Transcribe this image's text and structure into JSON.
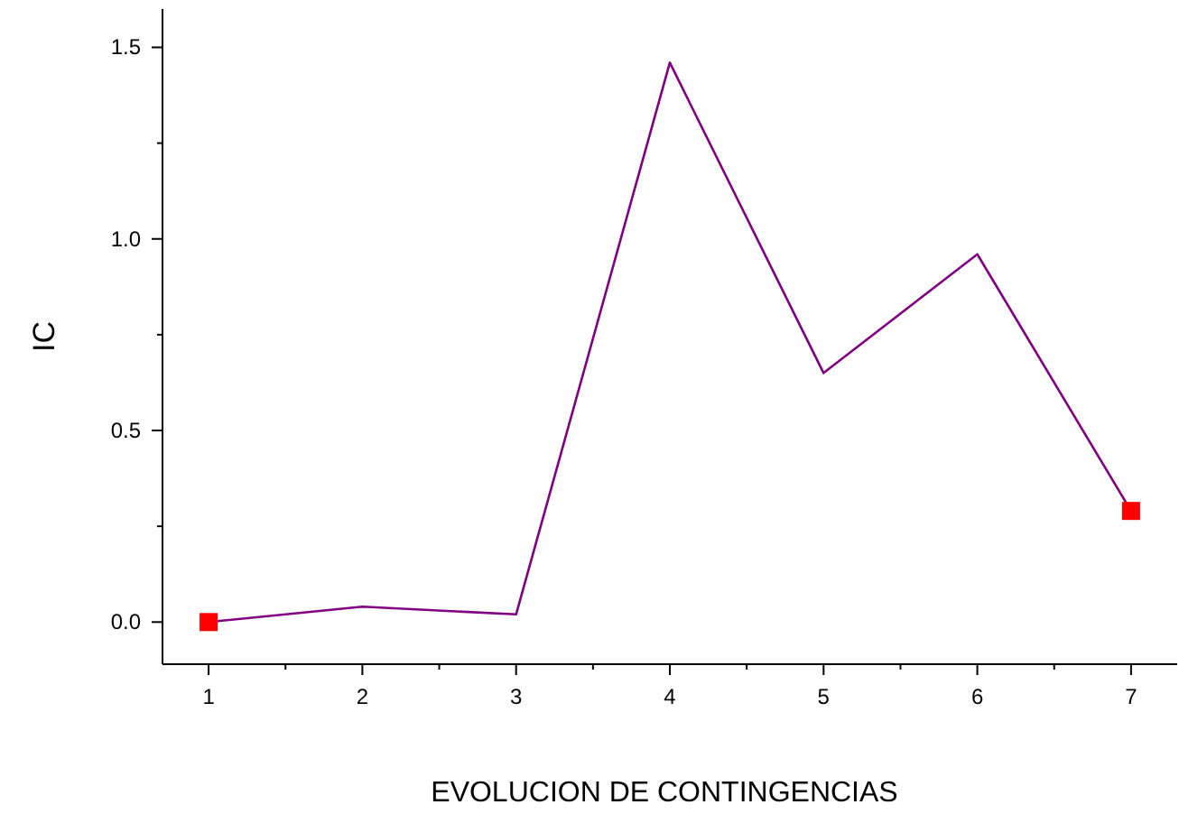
{
  "chart_data": {
    "type": "line",
    "xlabel": "EVOLUCION DE CONTINGENCIAS",
    "ylabel": "IC",
    "x": [
      1,
      2,
      3,
      4,
      5,
      6,
      7
    ],
    "series": [
      {
        "color": "#800080",
        "values": [
          0,
          0.04,
          0.02,
          1.46,
          0.65,
          0.96,
          0.29
        ],
        "marker": "none"
      },
      {
        "type": "scatter",
        "color": "#ff0000",
        "x": [
          1,
          7
        ],
        "values": [
          0,
          0.29
        ],
        "marker": "square"
      }
    ],
    "xlim": [
      0.7,
      7.3
    ],
    "ylim": [
      -0.11,
      1.6
    ],
    "xticks": [
      1,
      {
        "value": 1.5,
        "label": null
      },
      2,
      {
        "value": 2.5,
        "label": null
      },
      3,
      {
        "value": 3.5,
        "label": null
      },
      4,
      {
        "value": 4.5,
        "label": null
      },
      5,
      {
        "value": 5.5,
        "label": null
      },
      6,
      {
        "value": 6.5,
        "label": null
      },
      7
    ],
    "yticks": [
      {
        "value": 0,
        "label": "0.0"
      },
      {
        "value": 0.25,
        "label": null
      },
      {
        "value": 0.5,
        "label": "0.5"
      },
      {
        "value": 0.75,
        "label": null
      },
      {
        "value": 1,
        "label": "1.0"
      },
      {
        "value": 1.25,
        "label": null
      },
      {
        "value": 1.5,
        "label": "1.5"
      }
    ],
    "grid": false
  }
}
